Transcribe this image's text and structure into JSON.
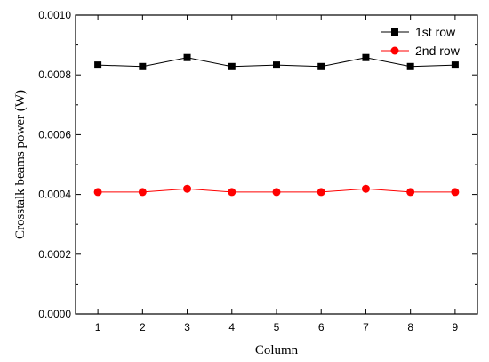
{
  "chart_data": {
    "type": "line",
    "xlabel": "Column",
    "ylabel": "Crosstalk beams power (W)",
    "x": [
      1,
      2,
      3,
      4,
      5,
      6,
      7,
      8,
      9
    ],
    "xlim": [
      0.5,
      9.5
    ],
    "ylim": [
      0,
      0.001
    ],
    "yticks": [
      "0.0000",
      "0.0002",
      "0.0004",
      "0.0006",
      "0.0008",
      "0.0010"
    ],
    "grid": false,
    "legend_position": "top-right",
    "series": [
      {
        "name": "1st row",
        "color": "#000000",
        "marker": "square",
        "values": [
          0.000833,
          0.000828,
          0.000858,
          0.000828,
          0.000833,
          0.000828,
          0.000858,
          0.000828,
          0.000833
        ]
      },
      {
        "name": "2nd row",
        "color": "#ff0000",
        "marker": "circle",
        "values": [
          0.000408,
          0.000408,
          0.000419,
          0.000408,
          0.000408,
          0.000408,
          0.000419,
          0.000408,
          0.000408
        ]
      }
    ]
  }
}
